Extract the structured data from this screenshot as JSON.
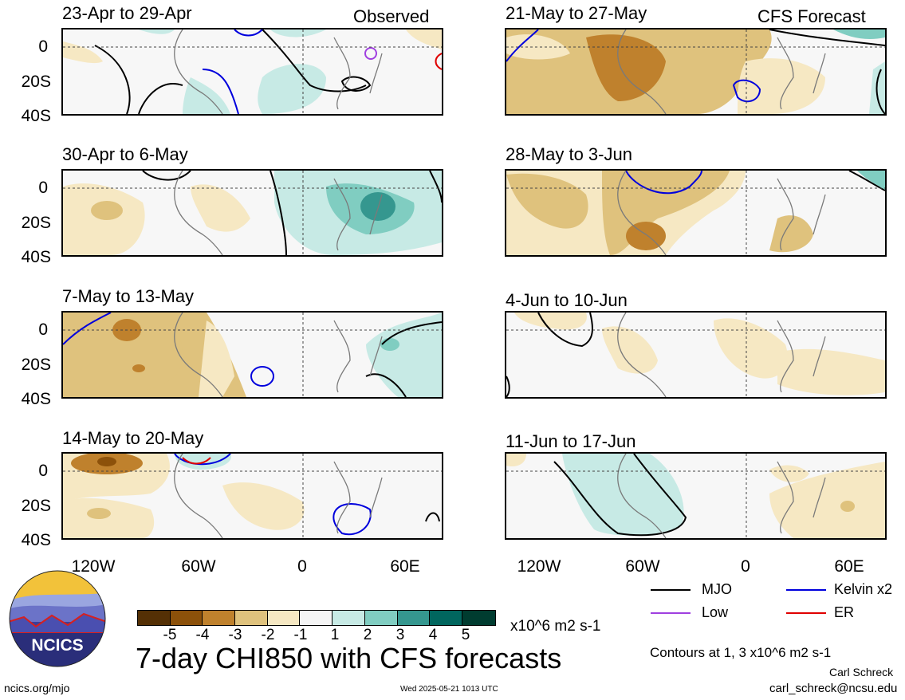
{
  "chart_data": {
    "type": "heatmap",
    "title": "7-day CHI850 with CFS forecasts",
    "colorbar": {
      "labels": [
        "-5",
        "-4",
        "-3",
        "-2",
        "-1",
        "1",
        "2",
        "3",
        "4",
        "5"
      ],
      "colors": [
        "#543005",
        "#8c510a",
        "#bf812d",
        "#dfc27d",
        "#f6e8c3",
        "#f5f5f5",
        "#c7eae5",
        "#80cdc1",
        "#35978f",
        "#01665e",
        "#003c30"
      ],
      "units": "x10^6 m2 s-1"
    },
    "x_ticks": [
      "120W",
      "60W",
      "0",
      "60E"
    ],
    "y_ticks": [
      "0",
      "20S",
      "40S"
    ],
    "observed_label": "Observed",
    "forecast_label": "CFS Forecast",
    "panels": [
      {
        "period": "23-Apr to 29-Apr",
        "column": "Observed"
      },
      {
        "period": "30-Apr to 6-May",
        "column": "Observed"
      },
      {
        "period": "7-May to 13-May",
        "column": "Observed"
      },
      {
        "period": "14-May to 20-May",
        "column": "Observed"
      },
      {
        "period": "21-May to 27-May",
        "column": "CFS Forecast"
      },
      {
        "period": "28-May to 3-Jun",
        "column": "CFS Forecast"
      },
      {
        "period": "4-Jun to 10-Jun",
        "column": "CFS Forecast"
      },
      {
        "period": "11-Jun to 17-Jun",
        "column": "CFS Forecast"
      }
    ],
    "legend": [
      {
        "name": "MJO",
        "color": "#000000"
      },
      {
        "name": "Kelvin x2",
        "color": "#0000dd"
      },
      {
        "name": "Low",
        "color": "#a040e0"
      },
      {
        "name": "ER",
        "color": "#e00000"
      }
    ],
    "contour_note": "Contours at 1, 3 x10^6 m2 s-1"
  },
  "footer": {
    "logo_text": "NCICS",
    "site": "ncics.org/mjo",
    "timestamp": "Wed 2025-05-21 1013 UTC",
    "author": "Carl Schreck",
    "email": "carl_schreck@ncsu.edu"
  }
}
